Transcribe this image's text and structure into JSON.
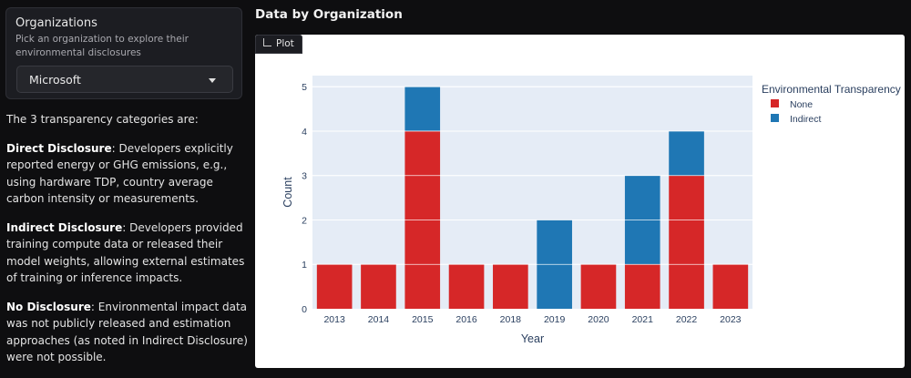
{
  "sidebar": {
    "title": "Organizations",
    "description": "Pick an organization to explore their environmental disclosures",
    "selected": "Microsoft"
  },
  "explanation": {
    "intro": "The 3 transparency categories are:",
    "items": [
      {
        "term": "Direct Disclosure",
        "text": ": Developers explicitly reported energy or GHG emissions, e.g., using hardware TDP, country average carbon intensity or measurements."
      },
      {
        "term": "Indirect Disclosure",
        "text": ": Developers provided training compute data or released their model weights, allowing external estimates of training or inference impacts."
      },
      {
        "term": "No Disclosure",
        "text": ": Environmental impact data was not publicly released and estimation approaches (as noted in Indirect Disclosure) were not possible."
      }
    ]
  },
  "main": {
    "title": "Data by Organization",
    "plot_tab": "Plot"
  },
  "colors": {
    "none": "#d62728",
    "indirect": "#1f77b4",
    "plot_bg": "#e5ecf6"
  },
  "chart_data": {
    "type": "bar",
    "stacked": true,
    "categories": [
      "2013",
      "2014",
      "2015",
      "2016",
      "2018",
      "2019",
      "2020",
      "2021",
      "2022",
      "2023"
    ],
    "series": [
      {
        "name": "None",
        "values": [
          1,
          1,
          4,
          1,
          1,
          0,
          1,
          1,
          3,
          1
        ]
      },
      {
        "name": "Indirect",
        "values": [
          0,
          0,
          1,
          0,
          0,
          2,
          0,
          2,
          1,
          0
        ]
      }
    ],
    "xlabel": "Year",
    "ylabel": "Count",
    "ylim": [
      0,
      5.25
    ],
    "yticks": [
      0,
      1,
      2,
      3,
      4,
      5
    ],
    "legend_title": "Environmental Transparency",
    "legend_position": "top-right",
    "grid": true
  }
}
